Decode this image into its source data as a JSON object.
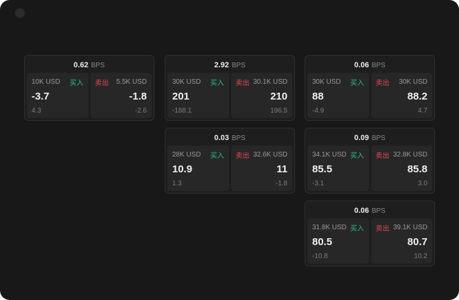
{
  "app": {
    "background": "#181818",
    "accent_green": "#2ebd85",
    "accent_red": "#e5484d"
  },
  "labels": {
    "bps": "BPS",
    "buy": "买入",
    "sell": "卖出"
  },
  "cards": [
    {
      "spread": "0.62",
      "buy": {
        "size": "10K USD",
        "price": "-3.7",
        "change": "4.3"
      },
      "sell": {
        "size": "5.5K USD",
        "price": "-1.8",
        "change": "-2.6"
      }
    },
    {
      "spread": "2.92",
      "buy": {
        "size": "30K USD",
        "price": "201",
        "change": "-188.1"
      },
      "sell": {
        "size": "30.1K USD",
        "price": "210",
        "change": "196.5"
      }
    },
    {
      "spread": "0.06",
      "buy": {
        "size": "30K USD",
        "price": "88",
        "change": "-4.9"
      },
      "sell": {
        "size": "30K USD",
        "price": "88.2",
        "change": "4.7"
      }
    },
    {
      "spread": "0.03",
      "buy": {
        "size": "28K USD",
        "price": "10.9",
        "change": "1.3"
      },
      "sell": {
        "size": "32.6K USD",
        "price": "11",
        "change": "-1.8"
      }
    },
    {
      "spread": "0.09",
      "buy": {
        "size": "34.1K USD",
        "price": "85.5",
        "change": "-3.1"
      },
      "sell": {
        "size": "32.8K USD",
        "price": "85.8",
        "change": "3.0"
      }
    },
    {
      "spread": "0.06",
      "buy": {
        "size": "31.8K USD",
        "price": "80.5",
        "change": "-10.8"
      },
      "sell": {
        "size": "39.1K USD",
        "price": "80.7",
        "change": "10.2"
      }
    }
  ]
}
